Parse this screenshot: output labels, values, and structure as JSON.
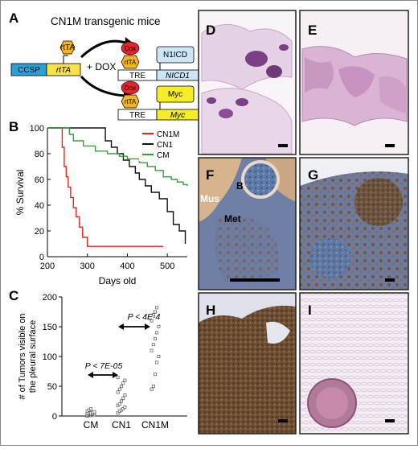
{
  "panel_labels": {
    "A": "A",
    "B": "B",
    "C": "C",
    "D": "D",
    "E": "E",
    "F": "F",
    "G": "G",
    "H": "H",
    "I": "I"
  },
  "panel_a": {
    "title": "CN1M transgenic mice",
    "ccsp": "CCSP",
    "rtta_gene": "rtTA",
    "rtta_protein": "rtTA",
    "dox_label": "+ DOX",
    "dox": "Dox",
    "tre": "TRE",
    "n1icd_protein": "N1ICD",
    "nicd1_gene": "NICD1",
    "myc_protein": "Myc",
    "myc_gene": "Myc"
  },
  "panel_f_labels": {
    "b": "B",
    "mus": "Mus",
    "met": "Met"
  },
  "colors": {
    "CN1M": "#e8231c",
    "CN1": "#111111",
    "CM": "#2ea636",
    "tissue_pink": "#c9a0c2",
    "tissue_purple": "#7a4a86",
    "brown": "#7a5a3a",
    "blue": "#4a6aa0"
  },
  "chart_data": [
    {
      "type": "line",
      "ylabel": "% Survival",
      "xlabel": "Days old",
      "xlim": [
        200,
        550
      ],
      "ylim": [
        0,
        100
      ],
      "xticks": [
        "200",
        "300",
        "400",
        "500"
      ],
      "yticks": [
        "0",
        "20",
        "40",
        "60",
        "80",
        "100"
      ],
      "legend": "top-right",
      "series": [
        {
          "name": "CN1M",
          "color": "#e8231c",
          "x": [
            200,
            232,
            237,
            242,
            247,
            252,
            258,
            265,
            272,
            280,
            288,
            300,
            315,
            490
          ],
          "y": [
            100,
            100,
            85,
            70,
            62,
            54,
            46,
            38,
            31,
            23,
            15,
            8,
            8,
            8
          ]
        },
        {
          "name": "CN1",
          "color": "#111111",
          "x": [
            200,
            330,
            345,
            360,
            375,
            390,
            405,
            420,
            430,
            445,
            460,
            480,
            500,
            515,
            530,
            545
          ],
          "y": [
            100,
            100,
            90,
            85,
            80,
            75,
            70,
            65,
            60,
            55,
            50,
            45,
            35,
            25,
            20,
            10
          ]
        },
        {
          "name": "CM",
          "color": "#2ea636",
          "x": [
            200,
            240,
            255,
            265,
            290,
            320,
            350,
            380,
            400,
            430,
            450,
            470,
            490,
            510,
            525,
            540,
            550
          ],
          "y": [
            100,
            100,
            95,
            90,
            86,
            82,
            80,
            78,
            76,
            73,
            70,
            67,
            62,
            60,
            58,
            56,
            55
          ]
        }
      ]
    },
    {
      "type": "scatter",
      "ylabel": "# of Tumors visible on the pleural surface",
      "ylim": [
        0,
        200
      ],
      "yticks": [
        "0",
        "50",
        "100",
        "150",
        "200"
      ],
      "categories": [
        "CM",
        "CN1",
        "CN1M"
      ],
      "series": [
        {
          "name": "CM",
          "values": [
            0,
            1,
            1,
            2,
            2,
            2,
            3,
            3,
            3,
            4,
            4,
            5,
            5,
            6,
            7,
            8,
            10,
            12
          ]
        },
        {
          "name": "CN1",
          "values": [
            5,
            8,
            10,
            12,
            15,
            18,
            20,
            25,
            30,
            35,
            40,
            45,
            50,
            55,
            60,
            65
          ]
        },
        {
          "name": "CN1M",
          "values": [
            45,
            50,
            70,
            90,
            100,
            110,
            120,
            130,
            140,
            150,
            160,
            170,
            175,
            182
          ]
        }
      ],
      "annotations": [
        "P < 7E-05",
        "P < 4E-4"
      ]
    }
  ]
}
